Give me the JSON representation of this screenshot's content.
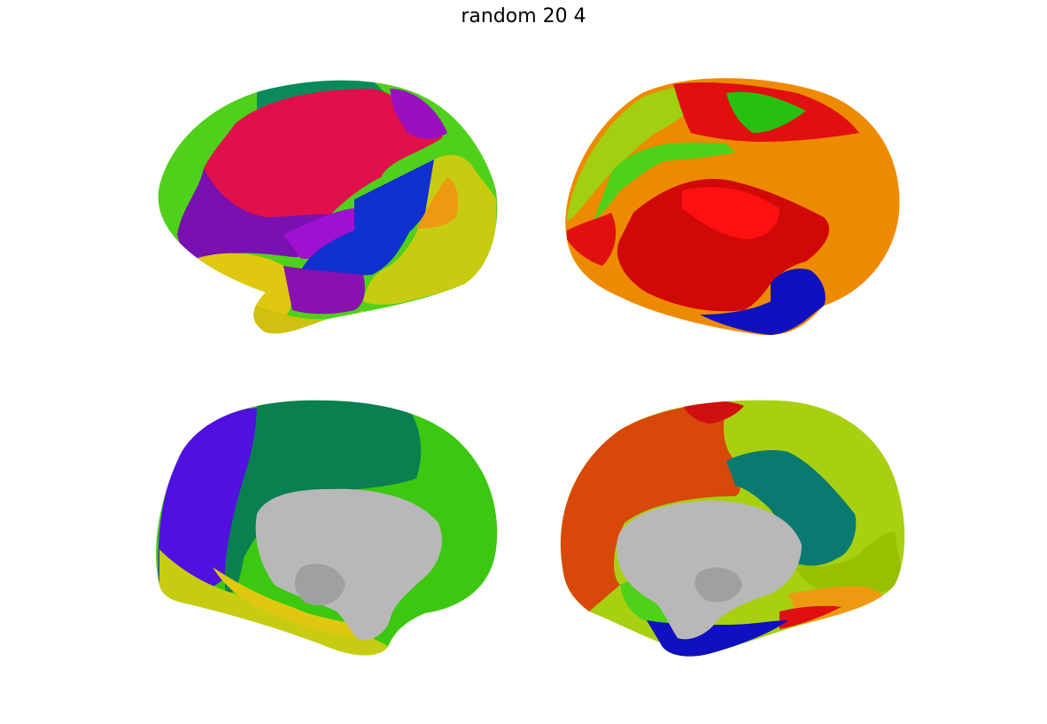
{
  "title": "random 20 4",
  "colors": {
    "green": "#4fd01a",
    "teal_green": "#0a8a5a",
    "crimson": "#e0104a",
    "magenta_purple": "#9a10c0",
    "purple": "#7a10b0",
    "blue": "#1030d0",
    "orange": "#ee9a10",
    "olive_yellow": "#c8cc10",
    "yellow": "#e0c810",
    "lime": "#a0d010",
    "red": "#e01010",
    "orange_2": "#ee8a00",
    "dark_blue": "#1010c0",
    "indigo": "#5010e0",
    "emerald": "#0a8050",
    "gray": "#b8b8b8",
    "red_orange": "#d84808",
    "dark_teal": "#0a7a70",
    "yellow_green": "#a8d010"
  }
}
